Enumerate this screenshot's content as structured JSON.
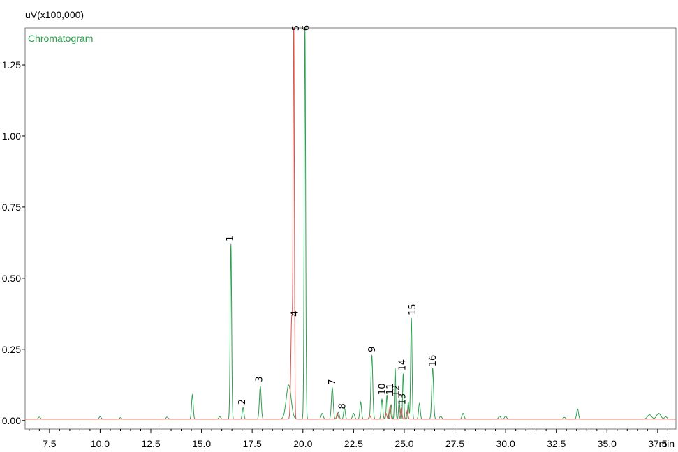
{
  "chart_data": {
    "type": "line",
    "title": "",
    "ylabel": "uV(x100,000)",
    "xlabel": "min",
    "xlim": [
      6.3,
      38.4
    ],
    "ylim": [
      -0.03,
      1.38
    ],
    "x_ticks": [
      7.5,
      10.0,
      12.5,
      15.0,
      17.5,
      20.0,
      22.5,
      25.0,
      27.5,
      30.0,
      32.5,
      35.0,
      37.5
    ],
    "x_tick_labels": [
      "7.5",
      "10.0",
      "12.5",
      "15.0",
      "17.5",
      "20.0",
      "22.5",
      "25.0",
      "27.5",
      "30.0",
      "32.5",
      "35.0",
      "37.5"
    ],
    "y_ticks": [
      0.0,
      0.25,
      0.5,
      0.75,
      1.0,
      1.25
    ],
    "y_tick_labels": [
      "0.00",
      "0.25",
      "0.50",
      "0.75",
      "1.00",
      "1.25"
    ],
    "grid": false,
    "legend": {
      "position": "top-left",
      "entries": [
        "Chromatogram"
      ]
    },
    "baseline": 0.005,
    "series": [
      {
        "name": "Chromatogram",
        "color": "#2e9e4f",
        "peaks": [
          {
            "x": 7.0,
            "h": 0.007,
            "w": 0.05
          },
          {
            "x": 10.0,
            "h": 0.008,
            "w": 0.05
          },
          {
            "x": 11.0,
            "h": 0.005,
            "w": 0.04
          },
          {
            "x": 13.3,
            "h": 0.007,
            "w": 0.05
          },
          {
            "x": 14.55,
            "h": 0.085,
            "w": 0.04
          },
          {
            "x": 15.9,
            "h": 0.008,
            "w": 0.05
          },
          {
            "x": 16.45,
            "h": 0.615,
            "w": 0.035
          },
          {
            "x": 17.05,
            "h": 0.04,
            "w": 0.04
          },
          {
            "x": 17.9,
            "h": 0.115,
            "w": 0.045
          },
          {
            "x": 19.3,
            "h": 0.12,
            "w": 0.12
          },
          {
            "x": 20.1,
            "h": 1.38,
            "w": 0.035
          },
          {
            "x": 20.95,
            "h": 0.02,
            "w": 0.05
          },
          {
            "x": 21.45,
            "h": 0.11,
            "w": 0.045
          },
          {
            "x": 21.75,
            "h": 0.025,
            "w": 0.04
          },
          {
            "x": 22.05,
            "h": 0.04,
            "w": 0.04
          },
          {
            "x": 22.5,
            "h": 0.02,
            "w": 0.05
          },
          {
            "x": 22.85,
            "h": 0.06,
            "w": 0.04
          },
          {
            "x": 23.4,
            "h": 0.225,
            "w": 0.045
          },
          {
            "x": 23.9,
            "h": 0.07,
            "w": 0.04
          },
          {
            "x": 24.15,
            "h": 0.085,
            "w": 0.035
          },
          {
            "x": 24.35,
            "h": 0.05,
            "w": 0.035
          },
          {
            "x": 24.55,
            "h": 0.18,
            "w": 0.03
          },
          {
            "x": 24.75,
            "h": 0.07,
            "w": 0.03
          },
          {
            "x": 24.95,
            "h": 0.16,
            "w": 0.03
          },
          {
            "x": 25.2,
            "h": 0.06,
            "w": 0.03
          },
          {
            "x": 25.35,
            "h": 0.355,
            "w": 0.035
          },
          {
            "x": 25.75,
            "h": 0.055,
            "w": 0.04
          },
          {
            "x": 26.4,
            "h": 0.18,
            "w": 0.045
          },
          {
            "x": 26.8,
            "h": 0.01,
            "w": 0.05
          },
          {
            "x": 27.9,
            "h": 0.02,
            "w": 0.05
          },
          {
            "x": 29.7,
            "h": 0.01,
            "w": 0.05
          },
          {
            "x": 30.0,
            "h": 0.01,
            "w": 0.05
          },
          {
            "x": 32.9,
            "h": 0.006,
            "w": 0.05
          },
          {
            "x": 33.55,
            "h": 0.035,
            "w": 0.045
          },
          {
            "x": 37.1,
            "h": 0.015,
            "w": 0.1
          },
          {
            "x": 37.55,
            "h": 0.02,
            "w": 0.1
          },
          {
            "x": 37.9,
            "h": 0.008,
            "w": 0.06
          }
        ]
      },
      {
        "color": "#d9534f",
        "peaks": [
          {
            "x": 19.45,
            "h": 0.36,
            "w": 0.045
          },
          {
            "x": 19.55,
            "h": 1.38,
            "w": 0.03
          },
          {
            "x": 21.7,
            "h": 0.02,
            "w": 0.04
          },
          {
            "x": 23.3,
            "h": 0.012,
            "w": 0.04
          },
          {
            "x": 24.1,
            "h": 0.02,
            "w": 0.04
          },
          {
            "x": 24.3,
            "h": 0.045,
            "w": 0.035
          },
          {
            "x": 24.85,
            "h": 0.04,
            "w": 0.035
          },
          {
            "x": 25.15,
            "h": 0.03,
            "w": 0.035
          }
        ]
      }
    ],
    "peak_labels": [
      {
        "text": "1",
        "x": 16.55,
        "y": 0.63
      },
      {
        "text": "2",
        "x": 17.15,
        "y": 0.055
      },
      {
        "text": "3",
        "x": 18.0,
        "y": 0.135
      },
      {
        "text": "4",
        "x": 19.75,
        "y": 0.365
      },
      {
        "text": "5",
        "x": 19.8,
        "y": 1.37
      },
      {
        "text": "6",
        "x": 20.3,
        "y": 1.37
      },
      {
        "text": "7",
        "x": 21.6,
        "y": 0.125
      },
      {
        "text": "8",
        "x": 22.1,
        "y": 0.04
      },
      {
        "text": "9",
        "x": 23.55,
        "y": 0.24
      },
      {
        "text": "10",
        "x": 24.05,
        "y": 0.09
      },
      {
        "text": "11",
        "x": 24.45,
        "y": 0.09
      },
      {
        "text": "12",
        "x": 24.75,
        "y": 0.085
      },
      {
        "text": "13",
        "x": 25.05,
        "y": 0.055
      },
      {
        "text": "14",
        "x": 25.05,
        "y": 0.175
      },
      {
        "text": "15",
        "x": 25.55,
        "y": 0.37
      },
      {
        "text": "16",
        "x": 26.55,
        "y": 0.19
      }
    ]
  }
}
